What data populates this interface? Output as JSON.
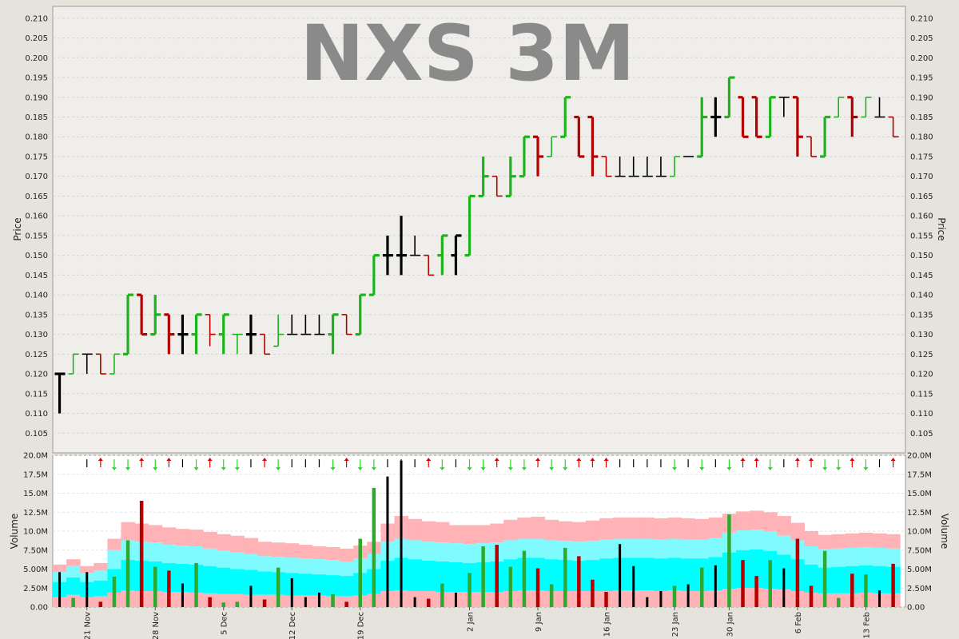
{
  "chart_data": [
    {
      "type": "ohlc",
      "title": "NXS 3M",
      "ylabel": "Price",
      "ylim": [
        0.1,
        0.213
      ],
      "y_ticks": [
        "0.105",
        "0.110",
        "0.115",
        "0.120",
        "0.125",
        "0.130",
        "0.135",
        "0.140",
        "0.145",
        "0.150",
        "0.155",
        "0.160",
        "0.165",
        "0.170",
        "0.175",
        "0.180",
        "0.185",
        "0.190",
        "0.195",
        "0.200",
        "0.205",
        "0.210"
      ],
      "grid": true,
      "colors": {
        "up": "#1db31d",
        "down": "#b50000",
        "neutral": "#000000"
      },
      "bars": [
        {
          "o": 0.12,
          "h": 0.12,
          "l": 0.11,
          "c": 0.12,
          "d": "n"
        },
        {
          "o": 0.12,
          "h": 0.125,
          "l": 0.12,
          "c": 0.125,
          "d": "u"
        },
        {
          "o": 0.125,
          "h": 0.125,
          "l": 0.12,
          "c": 0.125,
          "d": "n"
        },
        {
          "o": 0.125,
          "h": 0.125,
          "l": 0.12,
          "c": 0.12,
          "d": "d"
        },
        {
          "o": 0.12,
          "h": 0.125,
          "l": 0.12,
          "c": 0.125,
          "d": "u"
        },
        {
          "o": 0.125,
          "h": 0.14,
          "l": 0.125,
          "c": 0.14,
          "d": "u"
        },
        {
          "o": 0.14,
          "h": 0.14,
          "l": 0.13,
          "c": 0.13,
          "d": "d"
        },
        {
          "o": 0.13,
          "h": 0.14,
          "l": 0.13,
          "c": 0.135,
          "d": "u"
        },
        {
          "o": 0.135,
          "h": 0.135,
          "l": 0.125,
          "c": 0.13,
          "d": "d"
        },
        {
          "o": 0.13,
          "h": 0.135,
          "l": 0.125,
          "c": 0.13,
          "d": "n"
        },
        {
          "o": 0.13,
          "h": 0.135,
          "l": 0.125,
          "c": 0.135,
          "d": "u"
        },
        {
          "o": 0.135,
          "h": 0.135,
          "l": 0.127,
          "c": 0.13,
          "d": "d"
        },
        {
          "o": 0.13,
          "h": 0.135,
          "l": 0.125,
          "c": 0.135,
          "d": "u"
        },
        {
          "o": 0.13,
          "h": 0.13,
          "l": 0.125,
          "c": 0.13,
          "d": "u"
        },
        {
          "o": 0.13,
          "h": 0.135,
          "l": 0.125,
          "c": 0.13,
          "d": "n"
        },
        {
          "o": 0.13,
          "h": 0.13,
          "l": 0.125,
          "c": 0.125,
          "d": "d"
        },
        {
          "o": 0.127,
          "h": 0.135,
          "l": 0.127,
          "c": 0.13,
          "d": "u"
        },
        {
          "o": 0.13,
          "h": 0.135,
          "l": 0.13,
          "c": 0.13,
          "d": "n"
        },
        {
          "o": 0.13,
          "h": 0.135,
          "l": 0.13,
          "c": 0.13,
          "d": "n"
        },
        {
          "o": 0.13,
          "h": 0.135,
          "l": 0.13,
          "c": 0.13,
          "d": "n"
        },
        {
          "o": 0.13,
          "h": 0.135,
          "l": 0.125,
          "c": 0.135,
          "d": "u"
        },
        {
          "o": 0.135,
          "h": 0.135,
          "l": 0.13,
          "c": 0.13,
          "d": "d"
        },
        {
          "o": 0.13,
          "h": 0.14,
          "l": 0.13,
          "c": 0.14,
          "d": "u"
        },
        {
          "o": 0.14,
          "h": 0.15,
          "l": 0.14,
          "c": 0.15,
          "d": "u"
        },
        {
          "o": 0.15,
          "h": 0.155,
          "l": 0.145,
          "c": 0.15,
          "d": "n"
        },
        {
          "o": 0.15,
          "h": 0.16,
          "l": 0.145,
          "c": 0.15,
          "d": "n"
        },
        {
          "o": 0.15,
          "h": 0.155,
          "l": 0.15,
          "c": 0.15,
          "d": "n"
        },
        {
          "o": 0.15,
          "h": 0.15,
          "l": 0.145,
          "c": 0.145,
          "d": "d"
        },
        {
          "o": 0.15,
          "h": 0.155,
          "l": 0.145,
          "c": 0.155,
          "d": "u"
        },
        {
          "o": 0.15,
          "h": 0.155,
          "l": 0.145,
          "c": 0.155,
          "d": "n"
        },
        {
          "o": 0.15,
          "h": 0.165,
          "l": 0.15,
          "c": 0.165,
          "d": "u"
        },
        {
          "o": 0.165,
          "h": 0.175,
          "l": 0.165,
          "c": 0.17,
          "d": "u"
        },
        {
          "o": 0.17,
          "h": 0.17,
          "l": 0.165,
          "c": 0.165,
          "d": "d"
        },
        {
          "o": 0.165,
          "h": 0.175,
          "l": 0.165,
          "c": 0.17,
          "d": "u"
        },
        {
          "o": 0.17,
          "h": 0.18,
          "l": 0.17,
          "c": 0.18,
          "d": "u"
        },
        {
          "o": 0.18,
          "h": 0.18,
          "l": 0.17,
          "c": 0.175,
          "d": "d"
        },
        {
          "o": 0.175,
          "h": 0.18,
          "l": 0.175,
          "c": 0.18,
          "d": "u"
        },
        {
          "o": 0.18,
          "h": 0.19,
          "l": 0.18,
          "c": 0.19,
          "d": "u"
        },
        {
          "o": 0.185,
          "h": 0.185,
          "l": 0.175,
          "c": 0.175,
          "d": "d"
        },
        {
          "o": 0.185,
          "h": 0.185,
          "l": 0.17,
          "c": 0.175,
          "d": "d"
        },
        {
          "o": 0.175,
          "h": 0.175,
          "l": 0.17,
          "c": 0.17,
          "d": "d"
        },
        {
          "o": 0.17,
          "h": 0.175,
          "l": 0.17,
          "c": 0.17,
          "d": "n"
        },
        {
          "o": 0.17,
          "h": 0.175,
          "l": 0.17,
          "c": 0.17,
          "d": "n"
        },
        {
          "o": 0.17,
          "h": 0.175,
          "l": 0.17,
          "c": 0.17,
          "d": "n"
        },
        {
          "o": 0.17,
          "h": 0.175,
          "l": 0.17,
          "c": 0.17,
          "d": "n"
        },
        {
          "o": 0.17,
          "h": 0.175,
          "l": 0.17,
          "c": 0.175,
          "d": "u"
        },
        {
          "o": 0.175,
          "h": 0.175,
          "l": 0.175,
          "c": 0.175,
          "d": "n"
        },
        {
          "o": 0.175,
          "h": 0.19,
          "l": 0.175,
          "c": 0.185,
          "d": "u"
        },
        {
          "o": 0.185,
          "h": 0.19,
          "l": 0.18,
          "c": 0.185,
          "d": "n"
        },
        {
          "o": 0.185,
          "h": 0.195,
          "l": 0.185,
          "c": 0.195,
          "d": "u"
        },
        {
          "o": 0.19,
          "h": 0.19,
          "l": 0.18,
          "c": 0.18,
          "d": "d"
        },
        {
          "o": 0.19,
          "h": 0.19,
          "l": 0.18,
          "c": 0.18,
          "d": "d"
        },
        {
          "o": 0.18,
          "h": 0.19,
          "l": 0.18,
          "c": 0.19,
          "d": "u"
        },
        {
          "o": 0.19,
          "h": 0.19,
          "l": 0.185,
          "c": 0.19,
          "d": "n"
        },
        {
          "o": 0.19,
          "h": 0.19,
          "l": 0.175,
          "c": 0.18,
          "d": "d"
        },
        {
          "o": 0.18,
          "h": 0.18,
          "l": 0.175,
          "c": 0.175,
          "d": "d"
        },
        {
          "o": 0.175,
          "h": 0.185,
          "l": 0.175,
          "c": 0.185,
          "d": "u"
        },
        {
          "o": 0.185,
          "h": 0.19,
          "l": 0.185,
          "c": 0.19,
          "d": "u"
        },
        {
          "o": 0.19,
          "h": 0.19,
          "l": 0.18,
          "c": 0.185,
          "d": "d"
        },
        {
          "o": 0.185,
          "h": 0.19,
          "l": 0.185,
          "c": 0.19,
          "d": "u"
        },
        {
          "o": 0.185,
          "h": 0.19,
          "l": 0.185,
          "c": 0.185,
          "d": "n"
        },
        {
          "o": 0.185,
          "h": 0.185,
          "l": 0.18,
          "c": 0.18,
          "d": "d"
        }
      ]
    },
    {
      "type": "bar",
      "ylabel": "Volume",
      "ylim": [
        0,
        20000000
      ],
      "y_ticks": [
        "0.00",
        "2.50M",
        "5.00M",
        "7.50M",
        "10.0M",
        "12.5M",
        "15.0M",
        "17.5M",
        "20.0M"
      ],
      "x_ticks": [
        {
          "label": "21 Nov",
          "bar": 2
        },
        {
          "label": "28 Nov",
          "bar": 7
        },
        {
          "label": "5 Dec",
          "bar": 12
        },
        {
          "label": "12 Dec",
          "bar": 17
        },
        {
          "label": "19 Dec",
          "bar": 22
        },
        {
          "label": "2 Jan",
          "bar": 30
        },
        {
          "label": "9 Jan",
          "bar": 35
        },
        {
          "label": "16 Jan",
          "bar": 40
        },
        {
          "label": "23 Jan",
          "bar": 45
        },
        {
          "label": "30 Jan",
          "bar": 49
        },
        {
          "label": "6 Feb",
          "bar": 54
        },
        {
          "label": "13 Feb",
          "bar": 59
        }
      ],
      "volumes": [
        4.6,
        1.2,
        4.6,
        0.7,
        4.0,
        8.8,
        14.0,
        5.3,
        4.8,
        3.1,
        5.8,
        1.3,
        0.6,
        0.7,
        2.8,
        1.0,
        5.2,
        3.8,
        1.3,
        1.9,
        1.7,
        0.7,
        9.0,
        15.7,
        17.2,
        19.3,
        1.3,
        1.1,
        3.1,
        1.9,
        4.5,
        8.0,
        8.2,
        5.3,
        7.4,
        5.1,
        3.0,
        7.8,
        6.7,
        3.6,
        2.0,
        8.3,
        5.4,
        1.3,
        2.1,
        2.8,
        3.0,
        5.2,
        5.5,
        12.2,
        6.2,
        4.1,
        6.2,
        5.1,
        9.0,
        2.8,
        7.4,
        1.2,
        4.4,
        4.3,
        2.2,
        5.7
      ],
      "band_outer": [
        5.6,
        6.3,
        5.4,
        5.8,
        9.0,
        11.2,
        11.0,
        10.8,
        10.5,
        10.3,
        10.2,
        9.9,
        9.6,
        9.4,
        9.1,
        8.6,
        8.5,
        8.4,
        8.2,
        8.0,
        7.9,
        7.7,
        8.1,
        8.6,
        11.0,
        12.0,
        11.6,
        11.3,
        11.2,
        10.8,
        10.8,
        10.8,
        11.0,
        11.5,
        11.8,
        11.9,
        11.5,
        11.3,
        11.2,
        11.4,
        11.7,
        11.8,
        11.8,
        11.8,
        11.7,
        11.8,
        11.7,
        11.6,
        11.8,
        12.3,
        12.6,
        12.7,
        12.5,
        12.0,
        11.1,
        10.0,
        9.5,
        9.6,
        9.7,
        9.8,
        9.7,
        9.6
      ],
      "band_inner_hi": [
        4.6,
        5.4,
        4.5,
        4.8,
        7.5,
        8.8,
        8.6,
        8.5,
        8.2,
        8.1,
        8.0,
        7.7,
        7.4,
        7.2,
        7.0,
        6.7,
        6.6,
        6.5,
        6.4,
        6.3,
        6.2,
        6.0,
        6.4,
        7.0,
        8.6,
        9.0,
        8.8,
        8.6,
        8.5,
        8.4,
        8.3,
        8.4,
        8.5,
        8.8,
        9.0,
        9.0,
        8.8,
        8.7,
        8.6,
        8.7,
        8.9,
        9.0,
        9.0,
        9.0,
        8.9,
        9.0,
        8.9,
        8.9,
        9.1,
        9.8,
        10.1,
        10.2,
        10.0,
        9.4,
        8.8,
        8.0,
        7.6,
        7.7,
        7.8,
        7.9,
        7.8,
        7.7
      ],
      "band_inner_lo": [
        3.3,
        3.9,
        3.3,
        3.5,
        5.0,
        6.2,
        6.1,
        6.0,
        5.8,
        5.7,
        5.6,
        5.4,
        5.2,
        5.0,
        4.9,
        4.7,
        4.6,
        4.5,
        4.4,
        4.3,
        4.2,
        4.1,
        4.5,
        5.0,
        6.1,
        6.5,
        6.3,
        6.1,
        6.0,
        5.9,
        5.8,
        5.9,
        6.0,
        6.3,
        6.5,
        6.5,
        6.3,
        6.2,
        6.1,
        6.2,
        6.4,
        6.5,
        6.5,
        6.5,
        6.4,
        6.5,
        6.4,
        6.4,
        6.6,
        7.2,
        7.5,
        7.6,
        7.4,
        6.9,
        6.3,
        5.6,
        5.2,
        5.3,
        5.4,
        5.5,
        5.4,
        5.3
      ],
      "band_base": [
        1.3,
        1.6,
        1.3,
        1.4,
        1.9,
        2.2,
        2.1,
        2.1,
        2.0,
        2.0,
        1.9,
        1.8,
        1.7,
        1.7,
        1.6,
        1.6,
        1.6,
        1.5,
        1.5,
        1.5,
        1.4,
        1.4,
        1.5,
        1.7,
        2.1,
        2.2,
        2.1,
        2.1,
        2.0,
        2.0,
        2.0,
        2.0,
        2.0,
        2.1,
        2.2,
        2.2,
        2.1,
        2.1,
        2.1,
        2.1,
        2.1,
        2.2,
        2.2,
        2.2,
        2.1,
        2.2,
        2.1,
        2.1,
        2.2,
        2.4,
        2.5,
        2.5,
        2.4,
        2.3,
        2.1,
        1.9,
        1.8,
        1.8,
        1.8,
        1.9,
        1.8,
        1.8
      ],
      "band_colors": {
        "outer": "#ffb3b6",
        "inner": "#00ffff",
        "mid": "#7ffbff",
        "base": "#ffb3b6"
      }
    }
  ]
}
